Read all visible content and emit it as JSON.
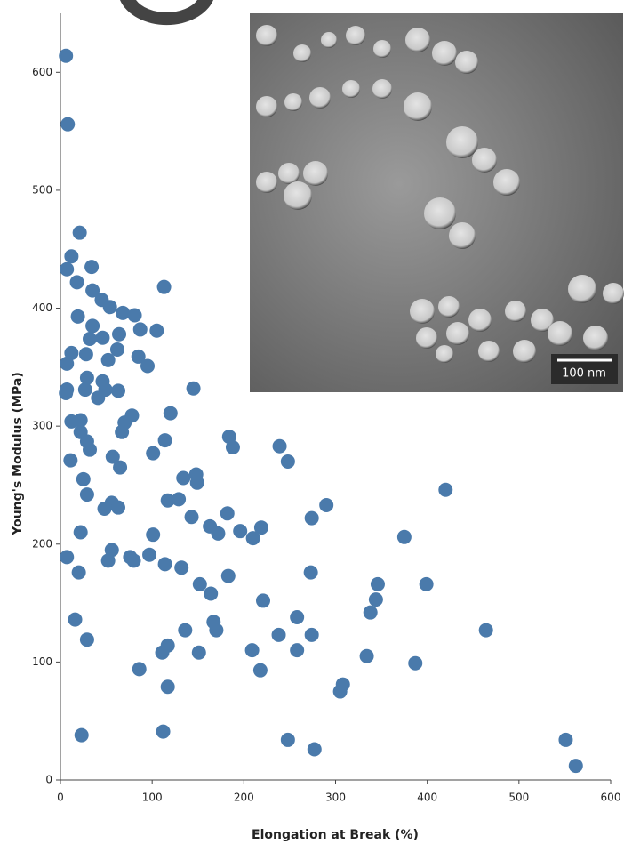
{
  "chart_data": {
    "type": "scatter",
    "x_label": "Elongation at Break (%)",
    "y_label": "Young's Modulus (MPa)",
    "color": "#4a7aab",
    "xlim": [
      0,
      600
    ],
    "xticks": [
      0,
      100,
      200,
      300,
      400,
      500,
      600
    ],
    "ylim": [
      0,
      650
    ],
    "yticks": [
      0,
      100,
      200,
      300,
      400,
      500,
      600
    ],
    "grid": false,
    "x": [
      6,
      8,
      21,
      12,
      7,
      34,
      18,
      35,
      113,
      19,
      45,
      54,
      68,
      81,
      35,
      32,
      46,
      64,
      87,
      105,
      62,
      12,
      28,
      52,
      7,
      95,
      85,
      46,
      29,
      27,
      49,
      63,
      145,
      41,
      7,
      6,
      12,
      22,
      78,
      70,
      120,
      22,
      67,
      29,
      32,
      114,
      101,
      184,
      188,
      239,
      248,
      11,
      57,
      65,
      25,
      134,
      148,
      149,
      420,
      29,
      117,
      129,
      56,
      63,
      290,
      48,
      143,
      182,
      274,
      22,
      163,
      172,
      196,
      219,
      210,
      375,
      101,
      56,
      7,
      76,
      80,
      97,
      52,
      114,
      132,
      183,
      20,
      273,
      346,
      399,
      152,
      164,
      344,
      221,
      338,
      16,
      258,
      167,
      170,
      136,
      464,
      238,
      274,
      29,
      117,
      111,
      151,
      209,
      258,
      334,
      387,
      86,
      218,
      308,
      305,
      117,
      23,
      112,
      248,
      277,
      551,
      562
    ],
    "values": [
      614,
      556,
      464,
      444,
      433,
      435,
      422,
      415,
      418,
      393,
      407,
      401,
      396,
      394,
      385,
      374,
      375,
      378,
      382,
      381,
      365,
      362,
      361,
      356,
      353,
      351,
      359,
      338,
      341,
      331,
      331,
      330,
      332,
      324,
      331,
      328,
      304,
      305,
      309,
      303,
      311,
      295,
      295,
      287,
      280,
      288,
      277,
      291,
      282,
      283,
      270,
      271,
      274,
      265,
      255,
      256,
      259,
      252,
      246,
      242,
      237,
      238,
      235,
      231,
      233,
      230,
      223,
      226,
      222,
      210,
      215,
      209,
      211,
      214,
      205,
      206,
      208,
      195,
      189,
      189,
      186,
      191,
      186,
      183,
      180,
      173,
      176,
      176,
      166,
      166,
      166,
      158,
      153,
      152,
      142,
      136,
      138,
      134,
      127,
      127,
      127,
      123,
      123,
      119,
      114,
      108,
      108,
      110,
      110,
      105,
      99,
      94,
      93,
      81,
      75,
      79,
      38,
      41,
      34,
      26,
      34,
      12
    ]
  },
  "inset": {
    "scale_label": "100 nm"
  }
}
